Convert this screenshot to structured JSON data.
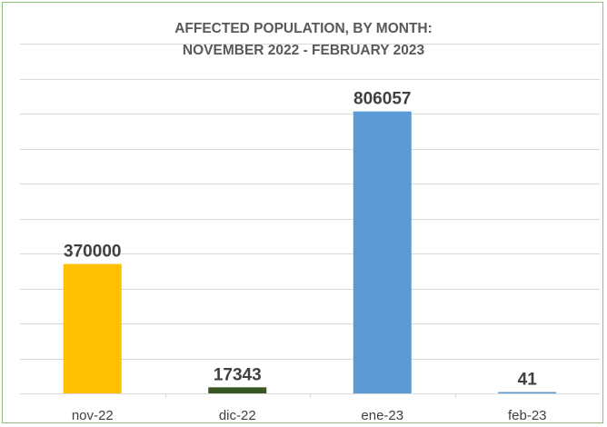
{
  "chart_data": {
    "type": "bar",
    "title": "AFFECTED POPULATION, BY MONTH:",
    "subtitle": "NOVEMBER 2022 - FEBRUARY 2023",
    "xlabel": "",
    "ylabel": "",
    "categories": [
      "nov-22",
      "dic-22",
      "ene-23",
      "feb-23"
    ],
    "values": [
      370000,
      17343,
      806057,
      41
    ],
    "data_labels": [
      "370000",
      "17343",
      "806057",
      "41"
    ],
    "colors": [
      "#ffc000",
      "#375623",
      "#5b9bd5",
      "#5b9bd5"
    ],
    "ylim": [
      0,
      1000000
    ],
    "grid": true,
    "legend": "none",
    "y_tick_labels_shown": false
  }
}
